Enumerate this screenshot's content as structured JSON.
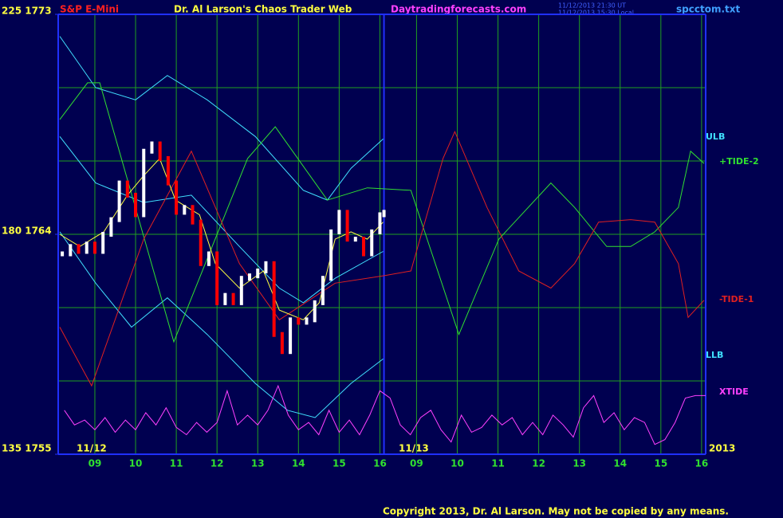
{
  "chart_data": {
    "type": "line",
    "title": "Dr. Al Larson's Chaos Trader Web",
    "subtitle": "S&P E-Mini",
    "site": "Daytradingforecasts.com",
    "file": "spcctom.txt",
    "timestamps": [
      "11/12/2013 21:30 UT",
      "11/12/2013 15:30 Local"
    ],
    "date_labels": [
      "11/12",
      "11/13",
      "2013"
    ],
    "copyright": "Copyright 2013, Dr. Al Larson. May not be copied by any means.",
    "xlim": [
      8.1,
      24
    ],
    "ylim": [
      1755,
      1773
    ],
    "xticks": [
      {
        "value": 9,
        "label": "09"
      },
      10,
      11,
      12,
      13,
      14,
      15,
      16,
      {
        "value": 16.9,
        "label": "09"
      },
      {
        "value": 17.9,
        "label": "10"
      },
      {
        "value": 18.9,
        "label": "11"
      },
      {
        "value": 19.9,
        "label": "12"
      },
      {
        "value": 20.9,
        "label": "13"
      },
      {
        "value": 21.9,
        "label": "14"
      },
      {
        "value": 22.9,
        "label": "15"
      },
      {
        "value": 23.9,
        "label": "16"
      }
    ],
    "yticks": [
      {
        "value": 1755,
        "label": "135 1755"
      },
      {
        "value": 1764,
        "label": "180 1764"
      },
      {
        "value": 1773,
        "label": "225 1773"
      }
    ],
    "ygrid": [
      1758,
      1761,
      1764,
      1767,
      1770
    ],
    "day_break": 16.1,
    "grid": true,
    "series": [
      {
        "name": "ULB",
        "color": "#40e0ff",
        "x": [
          8.14,
          9.02,
          10.0,
          10.78,
          11.76,
          12.94,
          14.12,
          14.71,
          15.29,
          16.08
        ],
        "values": [
          1772.1,
          1770.0,
          1769.5,
          1770.5,
          1769.5,
          1768.0,
          1765.8,
          1765.4,
          1766.7,
          1767.9
        ]
      },
      {
        "color": "#40e0ff",
        "x": [
          8.14,
          9.02,
          10.2,
          11.37,
          12.55,
          13.53,
          14.12,
          14.9,
          16.08
        ],
        "values": [
          1768.0,
          1766.1,
          1765.3,
          1765.6,
          1763.5,
          1761.8,
          1761.2,
          1762.2,
          1763.3
        ]
      },
      {
        "name": "LLB",
        "color": "#40e0ff",
        "x": [
          8.14,
          9.02,
          9.9,
          10.78,
          11.76,
          12.94,
          13.73,
          14.41,
          15.29,
          16.08
        ],
        "values": [
          1764.1,
          1762.0,
          1760.2,
          1761.4,
          1759.9,
          1757.9,
          1756.8,
          1756.5,
          1757.9,
          1758.9
        ]
      },
      {
        "name": "+TIDE-2",
        "color": "#30e030",
        "x": [
          8.14,
          8.82,
          9.12,
          10.94,
          12.75,
          13.43,
          14.71,
          15.69,
          16.76,
          17.94,
          18.92,
          20.2,
          20.78,
          21.57,
          22.16,
          22.75,
          23.33,
          23.63,
          23.96
        ],
        "values": [
          1768.7,
          1770.2,
          1770.2,
          1759.6,
          1767.1,
          1768.4,
          1765.4,
          1765.9,
          1765.8,
          1759.9,
          1763.8,
          1766.1,
          1765.1,
          1763.5,
          1763.5,
          1764.1,
          1765.1,
          1767.4,
          1766.9
        ]
      },
      {
        "name": "-TIDE-1",
        "color": "#e02020",
        "x": [
          8.14,
          8.92,
          10.2,
          11.37,
          12.55,
          13.53,
          14.9,
          16.08,
          16.76,
          17.55,
          17.84,
          18.63,
          19.41,
          20.2,
          20.78,
          21.37,
          22.16,
          22.75,
          23.33,
          23.57,
          23.96
        ],
        "values": [
          1760.2,
          1757.8,
          1763.8,
          1767.4,
          1762.8,
          1760.5,
          1762.0,
          1762.3,
          1762.5,
          1767.1,
          1768.2,
          1765.1,
          1762.5,
          1761.8,
          1762.8,
          1764.5,
          1764.6,
          1764.5,
          1762.8,
          1760.6,
          1761.3
        ]
      },
      {
        "name": "XTIDE",
        "color": "#ff40ff",
        "x": [
          8.25,
          8.5,
          8.75,
          9.0,
          9.25,
          9.5,
          9.75,
          10.0,
          10.25,
          10.5,
          10.75,
          11.0,
          11.25,
          11.5,
          11.75,
          12.0,
          12.25,
          12.5,
          12.75,
          13.0,
          13.25,
          13.5,
          13.75,
          14.0,
          14.25,
          14.5,
          14.75,
          15.0,
          15.25,
          15.5,
          15.75,
          16.0,
          16.25,
          16.5,
          16.75,
          17.0,
          17.25,
          17.5,
          17.75,
          18.0,
          18.25,
          18.5,
          18.75,
          19.0,
          19.25,
          19.5,
          19.75,
          20.0,
          20.25,
          20.5,
          20.75,
          21.0,
          21.25,
          21.5,
          21.75,
          22.0,
          22.25,
          22.5,
          22.75,
          23.0,
          23.25,
          23.5,
          23.75,
          24.0
        ],
        "values": [
          1756.8,
          1756.2,
          1756.4,
          1756.0,
          1756.5,
          1755.9,
          1756.4,
          1756.0,
          1756.7,
          1756.2,
          1756.9,
          1756.1,
          1755.8,
          1756.3,
          1755.9,
          1756.3,
          1757.6,
          1756.2,
          1756.6,
          1756.2,
          1756.8,
          1757.8,
          1756.6,
          1756.0,
          1756.3,
          1755.8,
          1756.8,
          1755.9,
          1756.4,
          1755.8,
          1756.6,
          1757.6,
          1757.3,
          1756.2,
          1755.8,
          1756.5,
          1756.8,
          1756.0,
          1755.5,
          1756.6,
          1755.9,
          1756.1,
          1756.6,
          1756.2,
          1756.5,
          1755.8,
          1756.3,
          1755.8,
          1756.6,
          1756.2,
          1755.7,
          1756.9,
          1757.4,
          1756.3,
          1756.7,
          1756.0,
          1756.5,
          1756.3,
          1755.4,
          1755.6,
          1756.3,
          1757.3,
          1757.4,
          1757.4
        ]
      },
      {
        "color": "#ffff40",
        "x": [
          8.14,
          8.63,
          9.22,
          9.8,
          10.2,
          10.59,
          10.98,
          11.57,
          11.96,
          12.55,
          13.14,
          13.53,
          14.12,
          14.51,
          14.9,
          15.29,
          15.69,
          16.08
        ],
        "values": [
          1764.0,
          1763.5,
          1764.1,
          1765.6,
          1766.4,
          1767.1,
          1765.4,
          1764.8,
          1762.8,
          1761.8,
          1762.5,
          1760.9,
          1760.5,
          1761.2,
          1763.8,
          1764.1,
          1763.8,
          1764.5
        ]
      },
      {
        "color": "#ffffff",
        "style": "bars",
        "down_color": "#ff0000",
        "x": [
          8.2,
          8.4,
          8.6,
          8.8,
          9.0,
          9.2,
          9.4,
          9.6,
          9.8,
          10.0,
          10.2,
          10.4,
          10.6,
          10.8,
          11.0,
          11.2,
          11.4,
          11.6,
          11.8,
          12.0,
          12.2,
          12.4,
          12.6,
          12.8,
          13.0,
          13.2,
          13.4,
          13.6,
          13.8,
          14.0,
          14.2,
          14.4,
          14.6,
          14.8,
          15.0,
          15.2,
          15.4,
          15.6,
          15.8,
          16.0,
          16.1
        ],
        "values": [
          1763.2,
          1763.5,
          1763.3,
          1763.6,
          1763.3,
          1764.0,
          1764.6,
          1766.1,
          1765.6,
          1764.8,
          1767.4,
          1767.7,
          1767.1,
          1766.1,
          1764.9,
          1765.1,
          1764.5,
          1762.8,
          1763.2,
          1761.2,
          1761.5,
          1761.2,
          1762.2,
          1762.3,
          1762.5,
          1762.8,
          1759.9,
          1759.2,
          1760.5,
          1760.4,
          1760.5,
          1761.2,
          1762.2,
          1764.1,
          1764.9,
          1763.8,
          1763.8,
          1763.2,
          1764.1,
          1764.8,
          1764.9
        ]
      }
    ]
  }
}
